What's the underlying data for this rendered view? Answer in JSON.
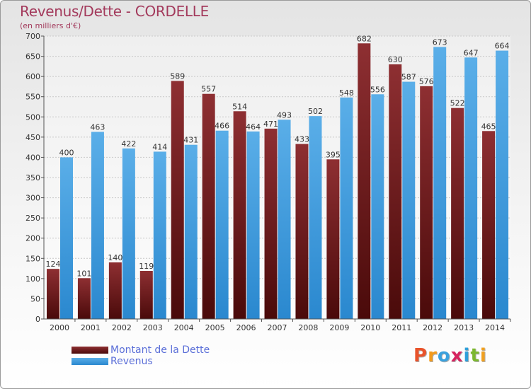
{
  "header": {
    "title": "Revenus/Dette - CORDELLE",
    "subtitle": "(en milliers d'€)"
  },
  "legend": {
    "dette_label": "Montant de la Dette",
    "revenus_label": "Revenus"
  },
  "logo": {
    "text": "Proxiti",
    "colors": [
      "#e8532b",
      "#f29a1c",
      "#3aa1dd",
      "#d6245f",
      "#2e9fd9",
      "#7cb82f",
      "#f0a020"
    ]
  },
  "colors": {
    "dette_top": "#8e2f32",
    "dette_bottom": "#4a0a0a",
    "revenus_top": "#5aaee8",
    "revenus_bottom": "#2a88cf",
    "title": "#a33a5c",
    "legend_text": "#5b6fd8"
  },
  "chart_data": {
    "type": "bar",
    "title": "Revenus/Dette - CORDELLE",
    "ylabel": "(en milliers d'€)",
    "xlabel": "",
    "ylim": [
      0,
      700
    ],
    "yticks": [
      0,
      50,
      100,
      150,
      200,
      250,
      300,
      350,
      400,
      450,
      500,
      550,
      600,
      650,
      700
    ],
    "grid": true,
    "legend_position": "bottom-left",
    "categories": [
      "2000",
      "2001",
      "2002",
      "2003",
      "2004",
      "2005",
      "2006",
      "2007",
      "2008",
      "2009",
      "2010",
      "2011",
      "2012",
      "2013",
      "2014"
    ],
    "series": [
      {
        "name": "Montant de la Dette",
        "values": [
          124,
          101,
          140,
          119,
          589,
          557,
          514,
          471,
          433,
          395,
          682,
          630,
          576,
          522,
          465
        ]
      },
      {
        "name": "Revenus",
        "values": [
          400,
          463,
          422,
          414,
          431,
          466,
          464,
          493,
          502,
          548,
          556,
          587,
          673,
          647,
          664
        ]
      }
    ]
  }
}
